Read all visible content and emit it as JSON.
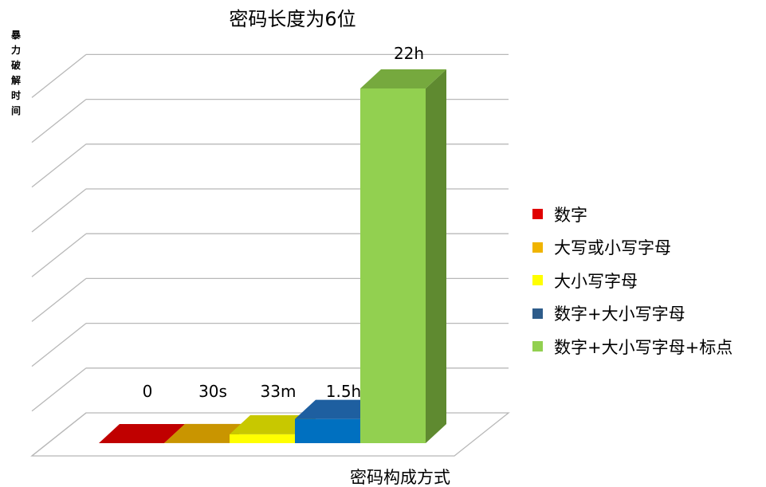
{
  "chart_data": {
    "type": "bar",
    "title": "密码长度为6位",
    "xlabel": "密码构成方式",
    "ylabel": "暴力破解时间",
    "three_d": true,
    "grid": true,
    "legend_position": "right",
    "series": [
      {
        "name": "数字",
        "value_hours": 0,
        "label": "0",
        "color": "#e00000",
        "side_color": "#a80000",
        "top_color": "#c00000"
      },
      {
        "name": "大写或小写字母",
        "value_hours": 0.0083,
        "label": "30s",
        "color": "#e6a800",
        "side_color": "#a87a00",
        "top_color": "#c99500"
      },
      {
        "name": "大小写字母",
        "value_hours": 0.55,
        "label": "33m",
        "color": "#ffff00",
        "side_color": "#b5b500",
        "top_color": "#c8c800"
      },
      {
        "name": "数字+大小写字母",
        "value_hours": 1.5,
        "label": "1.5h",
        "color": "#0070c0",
        "side_color": "#1f4e79",
        "top_color": "#1e5fa0"
      },
      {
        "name": "数字+大小写字母+标点",
        "value_hours": 22,
        "label": "22h",
        "color": "#92d050",
        "side_color": "#5f8a30",
        "top_color": "#76a93e"
      }
    ],
    "legend_swatch_colors": [
      "#e00000",
      "#f0b400",
      "#ffff00",
      "#2e5c8a",
      "#92d050"
    ]
  }
}
